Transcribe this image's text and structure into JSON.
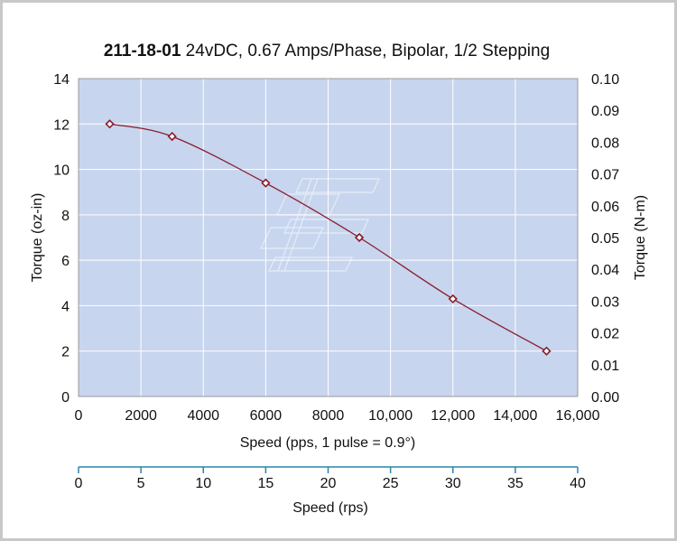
{
  "chart_data": {
    "type": "line",
    "title_bold": "211-18-01",
    "title_rest": " 24vDC, 0.67 Amps/Phase, Bipolar, 1/2 Stepping",
    "xlabel": "Speed (pps, 1 pulse = 0.9°)",
    "ylabel": "Torque (oz-in)",
    "y2label": "Torque (N-m)",
    "x2label": "Speed (rps)",
    "xlim": [
      0,
      16000
    ],
    "ylim": [
      0,
      14
    ],
    "y2lim": [
      0,
      0.1
    ],
    "x2lim": [
      0,
      40
    ],
    "x_ticks": [
      0,
      2000,
      4000,
      6000,
      8000,
      10000,
      12000,
      14000,
      16000
    ],
    "x_tick_labels": [
      "0",
      "2000",
      "4000",
      "6000",
      "8000",
      "10,000",
      "12,000",
      "14,000",
      "16,000"
    ],
    "y_ticks": [
      0,
      2,
      4,
      6,
      8,
      10,
      12,
      14
    ],
    "y_tick_labels": [
      "0",
      "2",
      "4",
      "6",
      "8",
      "10",
      "12",
      "14"
    ],
    "y2_ticks": [
      0,
      0.01,
      0.02,
      0.03,
      0.04,
      0.05,
      0.06,
      0.07,
      0.08,
      0.09,
      0.1
    ],
    "y2_tick_labels": [
      "0.00",
      "0.01",
      "0.02",
      "0.03",
      "0.04",
      "0.05",
      "0.06",
      "0.07",
      "0.08",
      "0.09",
      "0.10"
    ],
    "x2_ticks": [
      0,
      5,
      10,
      15,
      20,
      25,
      30,
      35,
      40
    ],
    "x2_tick_labels": [
      "0",
      "5",
      "10",
      "15",
      "20",
      "25",
      "30",
      "35",
      "40"
    ],
    "grid": true,
    "series": [
      {
        "name": "Torque",
        "x": [
          1000,
          3000,
          6000,
          9000,
          12000,
          15000
        ],
        "y": [
          12.0,
          11.45,
          9.4,
          7.0,
          4.3,
          2.0
        ]
      }
    ],
    "colors": {
      "plot_bg": "#c8d5ee",
      "grid": "#ffffff",
      "line": "#8a1c2b",
      "axis2": "#2a86a8"
    }
  }
}
